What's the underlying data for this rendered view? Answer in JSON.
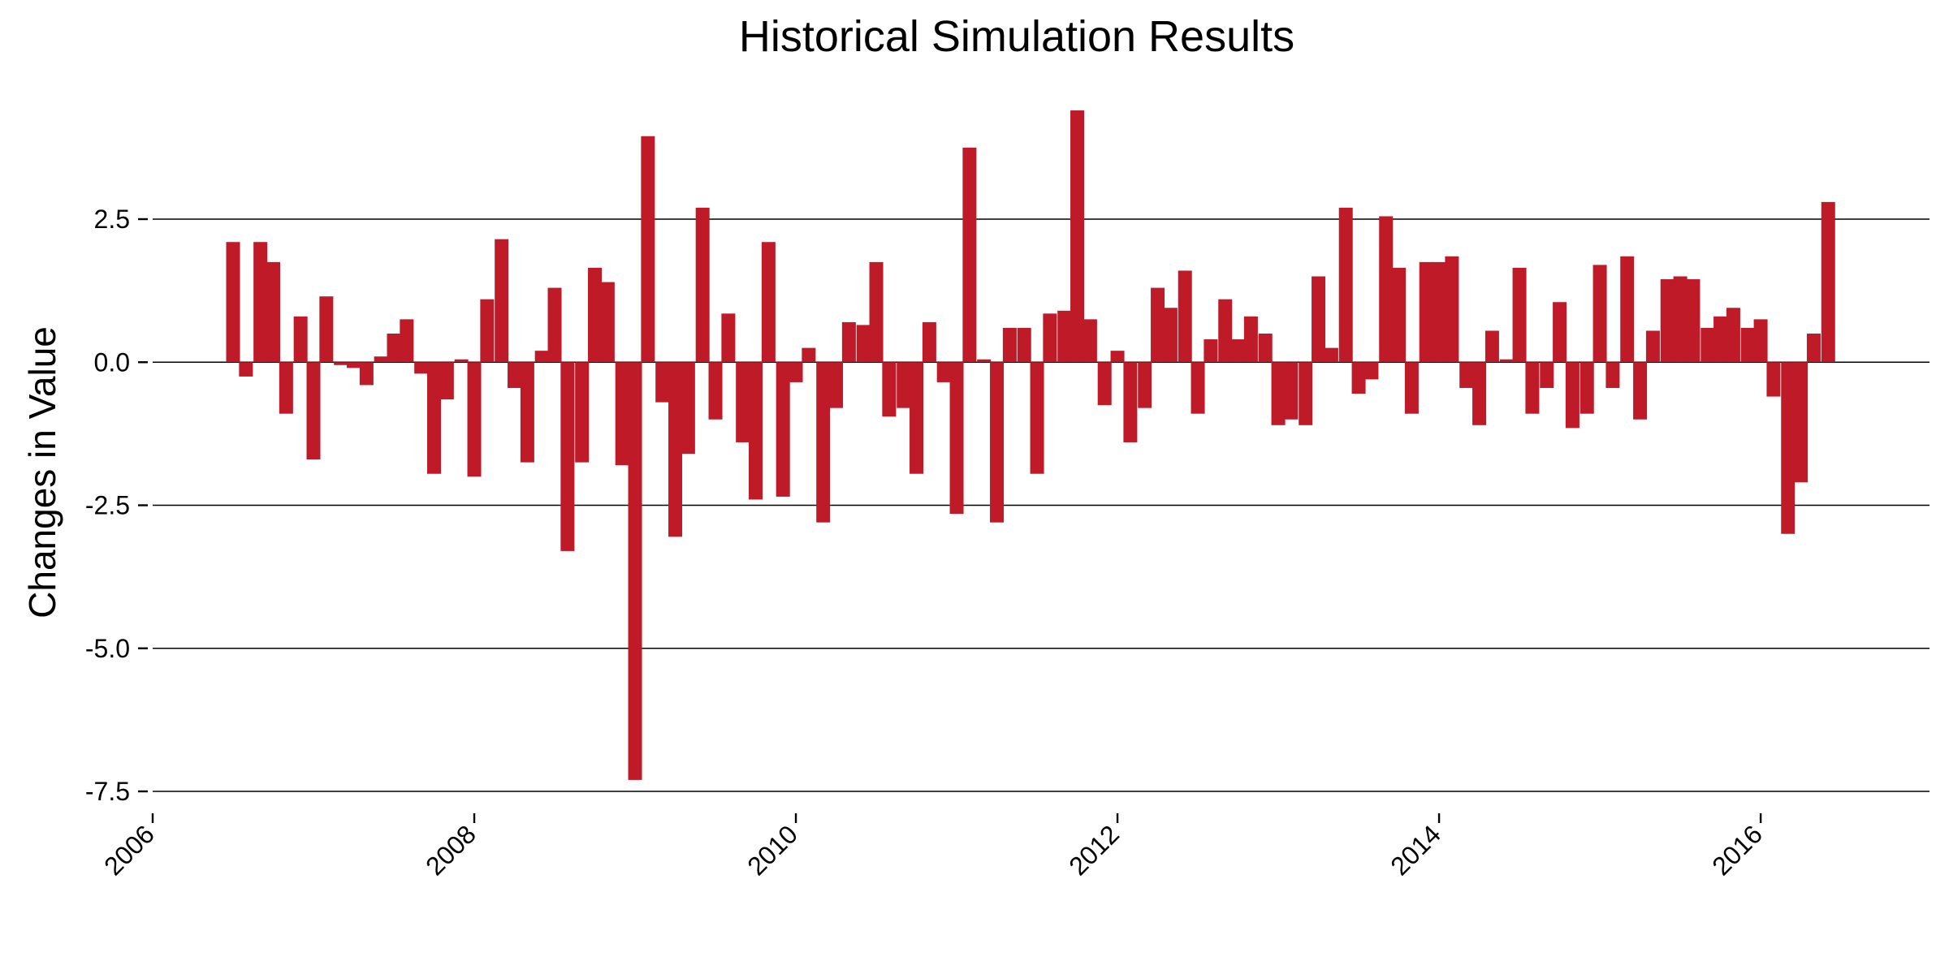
{
  "chart_data": {
    "type": "bar",
    "title": "Historical Simulation Results",
    "xlabel": "",
    "ylabel": "Changes in Value",
    "xlim": [
      2006.0,
      2017.05
    ],
    "ylim": [
      -7.8,
      4.5
    ],
    "y_ticks": [
      2.5,
      0.0,
      -2.5,
      -5.0,
      -7.5
    ],
    "y_tick_labels": [
      "2.5",
      "0.0",
      "-2.5",
      "-5.0",
      "-7.5"
    ],
    "x_ticks": [
      2006,
      2008,
      2010,
      2012,
      2014,
      2016
    ],
    "x_tick_labels": [
      "2006",
      "2008",
      "2010",
      "2012",
      "2014",
      "2016"
    ],
    "bar_color": "#be1a28",
    "grid": "horizontal",
    "legend": "none",
    "x": [
      2006.5,
      2006.58,
      2006.67,
      2006.75,
      2006.83,
      2006.92,
      2007.0,
      2007.08,
      2007.17,
      2007.25,
      2007.33,
      2007.42,
      2007.5,
      2007.58,
      2007.67,
      2007.75,
      2007.83,
      2007.92,
      2008.0,
      2008.08,
      2008.17,
      2008.25,
      2008.33,
      2008.42,
      2008.5,
      2008.58,
      2008.67,
      2008.75,
      2008.83,
      2008.92,
      2009.0,
      2009.08,
      2009.17,
      2009.25,
      2009.33,
      2009.42,
      2009.5,
      2009.58,
      2009.67,
      2009.75,
      2009.83,
      2009.92,
      2010.0,
      2010.08,
      2010.17,
      2010.25,
      2010.33,
      2010.42,
      2010.5,
      2010.58,
      2010.67,
      2010.75,
      2010.83,
      2010.92,
      2011.0,
      2011.08,
      2011.17,
      2011.25,
      2011.33,
      2011.42,
      2011.5,
      2011.58,
      2011.67,
      2011.75,
      2011.83,
      2011.92,
      2012.0,
      2012.08,
      2012.17,
      2012.25,
      2012.33,
      2012.42,
      2012.5,
      2012.58,
      2012.67,
      2012.75,
      2012.83,
      2012.92,
      2013.0,
      2013.08,
      2013.17,
      2013.25,
      2013.33,
      2013.42,
      2013.5,
      2013.58,
      2013.67,
      2013.75,
      2013.83,
      2013.92,
      2014.0,
      2014.08,
      2014.17,
      2014.25,
      2014.33,
      2014.42,
      2014.5,
      2014.58,
      2014.67,
      2014.75,
      2014.83,
      2014.92,
      2015.0,
      2015.08,
      2015.17,
      2015.25,
      2015.33,
      2015.42,
      2015.5,
      2015.58,
      2015.67,
      2015.75,
      2015.83,
      2015.92,
      2016.0,
      2016.08,
      2016.17,
      2016.25,
      2016.33,
      2016.42
    ],
    "values": [
      2.1,
      -0.25,
      2.1,
      1.75,
      -0.9,
      0.8,
      -1.7,
      1.15,
      -0.05,
      -0.1,
      -0.4,
      0.1,
      0.5,
      0.75,
      -0.2,
      -1.95,
      -0.65,
      0.05,
      -2.0,
      1.1,
      2.15,
      -0.45,
      -1.75,
      0.2,
      1.3,
      -3.3,
      -1.75,
      1.65,
      1.4,
      -1.8,
      -7.3,
      3.95,
      -0.7,
      -3.05,
      -1.6,
      2.7,
      -1.0,
      0.85,
      -1.4,
      -2.4,
      2.1,
      -2.35,
      -0.35,
      0.25,
      -2.8,
      -0.8,
      0.7,
      0.65,
      1.75,
      -0.95,
      -0.8,
      -1.95,
      0.7,
      -0.35,
      -2.65,
      3.75,
      0.05,
      -2.8,
      0.6,
      0.6,
      -1.95,
      0.85,
      0.9,
      4.4,
      0.75,
      -0.75,
      0.2,
      -1.4,
      -0.8,
      1.3,
      0.95,
      1.6,
      -0.9,
      0.4,
      1.1,
      0.4,
      0.8,
      0.5,
      -1.1,
      -1.0,
      -1.1,
      1.5,
      0.25,
      2.7,
      -0.55,
      -0.3,
      2.55,
      1.65,
      -0.9,
      1.75,
      1.75,
      1.85,
      -0.45,
      -1.1,
      0.55,
      0.05,
      1.65,
      -0.9,
      -0.45,
      1.05,
      -1.15,
      -0.9,
      1.7,
      -0.45,
      1.85,
      -1.0,
      0.55,
      1.45,
      1.5,
      1.45,
      0.6,
      0.8,
      0.95,
      0.6,
      0.75,
      -0.6,
      -3.0,
      -2.1,
      0.5,
      2.8
    ]
  }
}
